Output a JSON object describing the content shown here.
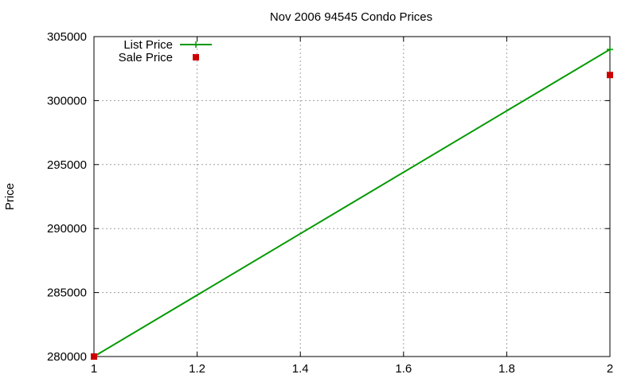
{
  "chart_data": {
    "type": "line",
    "title": "Nov 2006 94545 Condo Prices",
    "xlabel": "",
    "ylabel": "Price",
    "xlim": [
      1,
      2
    ],
    "ylim": [
      280000,
      305000
    ],
    "x_ticks": [
      "1",
      "1.2",
      "1.4",
      "1.6",
      "1.8",
      "2"
    ],
    "y_ticks": [
      "280000",
      "285000",
      "290000",
      "295000",
      "300000",
      "305000"
    ],
    "grid": true,
    "legend_position": "top-left",
    "series": [
      {
        "name": "List Price",
        "style": "linespoints",
        "marker": "plus",
        "color": "#009900",
        "points": [
          {
            "x": 1,
            "y": 280000
          },
          {
            "x": 2,
            "y": 304000
          }
        ]
      },
      {
        "name": "Sale Price",
        "style": "points",
        "marker": "square",
        "color": "#cc0000",
        "points": [
          {
            "x": 1,
            "y": 280000
          },
          {
            "x": 2,
            "y": 302000
          }
        ]
      }
    ]
  }
}
